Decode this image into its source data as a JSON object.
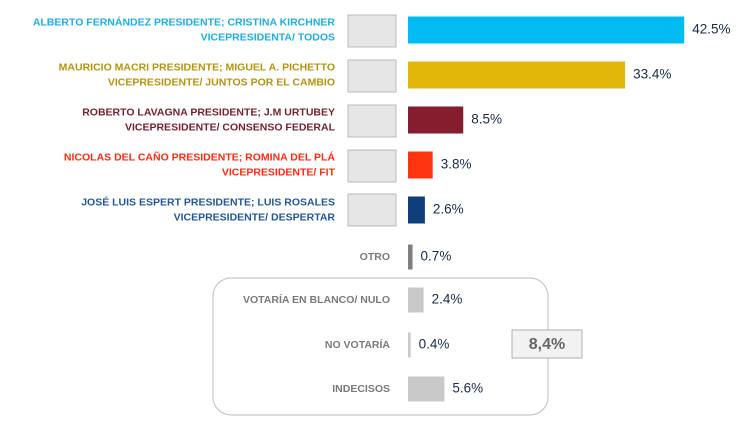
{
  "chart_data": {
    "type": "bar",
    "orientation": "horizontal",
    "categories": [
      [
        "ALBERTO FERNÁNDEZ PRESIDENTE; CRISTINA KIRCHNER",
        "VICEPRESIDENTA/ TODOS"
      ],
      [
        "MAURICIO MACRI PRESIDENTE; MIGUEL A. PICHETTO",
        "VICEPRESIDENTE/ JUNTOS POR EL CAMBIO"
      ],
      [
        "ROBERTO LAVAGNA PRESIDENTE; J.M URTUBEY",
        "VICEPRESIDENTE/ CONSENSO FEDERAL"
      ],
      [
        "NICOLAS DEL CAÑO PRESIDENTE; ROMINA DEL PLÁ",
        "VICEPRESIDENTE/ FIT"
      ],
      [
        "JOSÉ LUIS ESPERT PRESIDENTE; LUIS ROSALES",
        "VICEPRESIDENTE/ DESPERTAR"
      ],
      [
        "OTRO"
      ],
      [
        "VOTARÍA EN BLANCO/ NULO"
      ],
      [
        "NO VOTARÍA"
      ],
      [
        "INDECISOS"
      ]
    ],
    "values": [
      42.5,
      33.4,
      8.5,
      3.8,
      2.6,
      0.7,
      2.4,
      0.4,
      5.6
    ],
    "value_labels": [
      "42.5%",
      "33.4%",
      "8.5%",
      "3.8%",
      "2.6%",
      "0.7%",
      "2.4%",
      "0.4%",
      "5.6%"
    ],
    "colors": [
      "#00bcf2",
      "#e3b70a",
      "#861d2e",
      "#ff3510",
      "#0e3f7c",
      "#7f7f7f",
      "#c9c9c9",
      "#c9c9c9",
      "#c9c9c9"
    ],
    "label_colors": [
      "#1ab0e8",
      "#b8940c",
      "#7b1e2e",
      "#ff2a10",
      "#2456a0",
      "#7a7a7a",
      "#7a7a7a",
      "#7a7a7a",
      "#7a7a7a"
    ],
    "group_total": "8,4%"
  }
}
